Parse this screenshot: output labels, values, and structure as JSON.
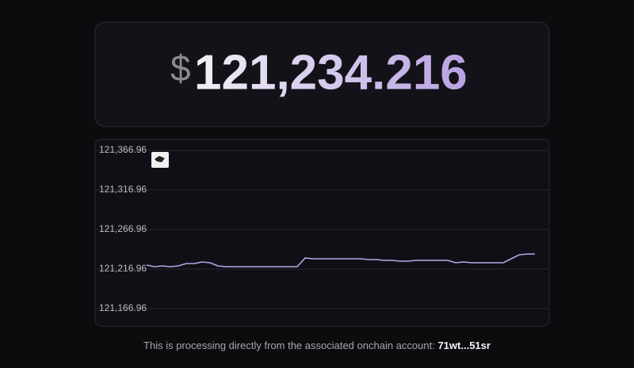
{
  "price": {
    "symbol": "$",
    "amount": "121,234.216"
  },
  "chart_data": {
    "type": "line",
    "values": [
      121222,
      121220,
      121221,
      121220,
      121221,
      121224,
      121224,
      121226,
      121225,
      121221,
      121220,
      121220,
      121220,
      121220,
      121220,
      121220,
      121220,
      121220,
      121220,
      121220,
      121231,
      121230,
      121230,
      121230,
      121230,
      121230,
      121230,
      121230,
      121229,
      121229,
      121228,
      121228,
      121227,
      121227,
      121228,
      121228,
      121228,
      121228,
      121228,
      121225,
      121226,
      121225,
      121225,
      121225,
      121225,
      121225,
      121230,
      121235,
      121236,
      121236
    ],
    "color": "#b9a6e6",
    "ylim": [
      121166.96,
      121366.96
    ],
    "yticks": [
      {
        "value": 121166.96,
        "label": "121,166.96"
      },
      {
        "value": 121216.96,
        "label": "121,216.96"
      },
      {
        "value": 121266.96,
        "label": "121,266.96"
      },
      {
        "value": 121316.96,
        "label": "121,316.96"
      },
      {
        "value": 121366.96,
        "label": "121,366.96"
      }
    ],
    "grid": true
  },
  "footer": {
    "text": "This is processing directly from the associated onchain account:",
    "account": "71wt...51sr"
  }
}
